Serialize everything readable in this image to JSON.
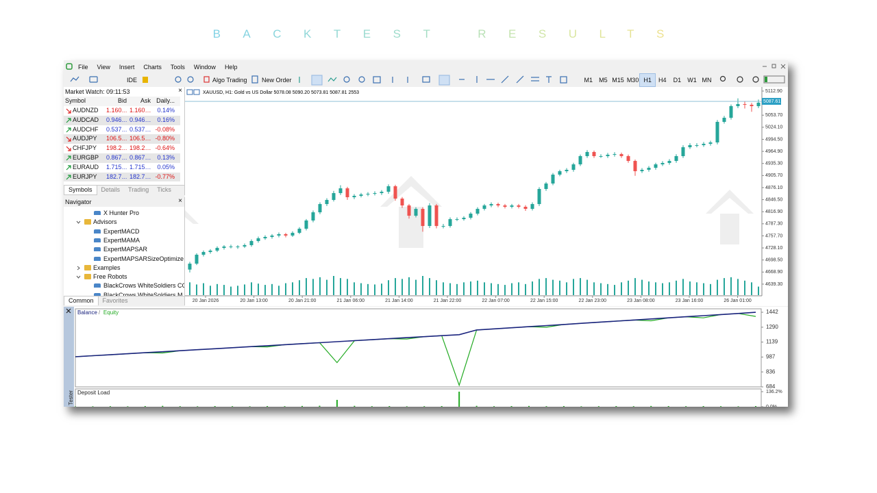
{
  "title": "BACKTEST RESULTS",
  "menu": [
    "File",
    "View",
    "Insert",
    "Charts",
    "Tools",
    "Window",
    "Help"
  ],
  "toolbar": {
    "ide": "IDE",
    "algo_trading": "Algo Trading",
    "new_order": "New Order",
    "timeframes": [
      "M1",
      "M5",
      "M15",
      "M30",
      "H1",
      "H4",
      "D1",
      "W1",
      "MN"
    ],
    "active_timeframe": "H1"
  },
  "market_watch": {
    "title": "Market Watch: 09:11:53",
    "columns": [
      "Symbol",
      "Bid",
      "Ask",
      "Daily..."
    ],
    "rows": [
      {
        "symbol": "AUDNZD",
        "bid": "1.160…",
        "ask": "1.160…",
        "daily": "0.14%",
        "trend": "down"
      },
      {
        "symbol": "AUDCAD",
        "bid": "0.946…",
        "ask": "0.946…",
        "daily": "0.16%",
        "trend": "up"
      },
      {
        "symbol": "AUDCHF",
        "bid": "0.537…",
        "ask": "0.537…",
        "daily": "-0.08%",
        "trend": "up"
      },
      {
        "symbol": "AUDJPY",
        "bid": "106.5…",
        "ask": "106.5…",
        "daily": "-0.80%",
        "trend": "down"
      },
      {
        "symbol": "CHFJPY",
        "bid": "198.2…",
        "ask": "198.2…",
        "daily": "-0.64%",
        "trend": "down"
      },
      {
        "symbol": "EURGBP",
        "bid": "0.867…",
        "ask": "0.867…",
        "daily": "0.13%",
        "trend": "up"
      },
      {
        "symbol": "EURAUD",
        "bid": "1.715…",
        "ask": "1.715…",
        "daily": "0.05%",
        "trend": "up"
      },
      {
        "symbol": "EURJPY",
        "bid": "182.7…",
        "ask": "182.7…",
        "daily": "-0.77%",
        "trend": "up"
      }
    ],
    "tabs": [
      "Symbols",
      "Details",
      "Trading",
      "Ticks"
    ]
  },
  "navigator": {
    "title": "Navigator",
    "items": [
      {
        "label": "X Hunter Pro",
        "level": 2,
        "kind": "ea"
      },
      {
        "label": "Advisors",
        "level": 1,
        "kind": "folder",
        "expanded": true
      },
      {
        "label": "ExpertMACD",
        "level": 2,
        "kind": "ea"
      },
      {
        "label": "ExpertMAMA",
        "level": 2,
        "kind": "ea"
      },
      {
        "label": "ExpertMAPSAR",
        "level": 2,
        "kind": "ea"
      },
      {
        "label": "ExpertMAPSARSizeOptimize",
        "level": 2,
        "kind": "ea"
      },
      {
        "label": "Examples",
        "level": 1,
        "kind": "folder",
        "expanded": false
      },
      {
        "label": "Free Robots",
        "level": 1,
        "kind": "folder",
        "expanded": true
      },
      {
        "label": "BlackCrows WhiteSoldiers CC",
        "level": 2,
        "kind": "ea"
      },
      {
        "label": "BlackCrows WhiteSoldiers M",
        "level": 2,
        "kind": "ea"
      }
    ],
    "tabs": [
      "Common",
      "Favorites"
    ]
  },
  "chart": {
    "type": "candlestick",
    "header": "XAUUSD, H1:  Gold vs US Dollar  5078.08 5090.20 5073.81 5087.81  2553",
    "ylim": [
      4614,
      5119.6
    ],
    "yticks": [
      {
        "value": 5112.9,
        "label": "5112.90"
      },
      {
        "value": 5053.7,
        "label": "5053.70"
      },
      {
        "value": 5024.1,
        "label": "5024.10"
      },
      {
        "value": 4994.5,
        "label": "4994.50"
      },
      {
        "value": 4964.9,
        "label": "4964.90"
      },
      {
        "value": 4935.3,
        "label": "4935.30"
      },
      {
        "value": 4905.7,
        "label": "4905.70"
      },
      {
        "value": 4876.1,
        "label": "4876.10"
      },
      {
        "value": 4846.5,
        "label": "4846.50"
      },
      {
        "value": 4816.9,
        "label": "4816.90"
      },
      {
        "value": 4787.3,
        "label": "4787.30"
      },
      {
        "value": 4757.7,
        "label": "4757.70"
      },
      {
        "value": 4728.1,
        "label": "4728.10"
      },
      {
        "value": 4698.5,
        "label": "4698.50"
      },
      {
        "value": 4668.9,
        "label": "4668.90"
      },
      {
        "value": 4639.3,
        "label": "4639.30"
      }
    ],
    "last_price": {
      "value": 5087.61,
      "label": "5087.61"
    },
    "x_labels": [
      "20 Jan 2026",
      "20 Jan 13:00",
      "20 Jan 21:00",
      "21 Jan 06:00",
      "21 Jan 14:00",
      "21 Jan 22:00",
      "22 Jan 07:00",
      "22 Jan 15:00",
      "22 Jan 23:00",
      "23 Jan 08:00",
      "23 Jan 16:00",
      "26 Jan 01:00"
    ],
    "up_color": "#26a69a",
    "down_color": "#ef5350",
    "candles": [
      [
        4675.0,
        4694.0,
        4668.0,
        4689.5
      ],
      [
        4689.5,
        4715.0,
        4686.0,
        4711.4
      ],
      [
        4711.4,
        4722.0,
        4707.0,
        4718.1
      ],
      [
        4718.1,
        4725.0,
        4714.0,
        4721.5
      ],
      [
        4721.5,
        4732.0,
        4718.0,
        4728.2
      ],
      [
        4728.2,
        4735.0,
        4724.0,
        4731.5
      ],
      [
        4731.5,
        4736.0,
        4727.0,
        4731.5
      ],
      [
        4731.5,
        4735.0,
        4726.0,
        4731.5
      ],
      [
        4731.5,
        4739.0,
        4728.0,
        4734.9
      ],
      [
        4734.9,
        4749.0,
        4731.0,
        4745.0
      ],
      [
        4745.0,
        4756.0,
        4741.0,
        4751.7
      ],
      [
        4751.7,
        4759.0,
        4748.0,
        4755.1
      ],
      [
        4755.1,
        4762.0,
        4751.0,
        4758.4
      ],
      [
        4758.4,
        4766.0,
        4754.0,
        4761.8
      ],
      [
        4761.8,
        4765.0,
        4754.0,
        4758.4
      ],
      [
        4758.4,
        4769.0,
        4755.0,
        4765.1
      ],
      [
        4765.1,
        4779.0,
        4762.0,
        4775.2
      ],
      [
        4775.2,
        4799.0,
        4771.0,
        4795.4
      ],
      [
        4795.4,
        4820.0,
        4791.0,
        4815.5
      ],
      [
        4815.5,
        4840.0,
        4811.0,
        4835.7
      ],
      [
        4835.7,
        4850.0,
        4831.0,
        4845.8
      ],
      [
        4845.8,
        4868.0,
        4842.0,
        4862.6
      ],
      [
        4862.6,
        4882.0,
        4858.0,
        4874.3
      ],
      [
        4874.3,
        4878.0,
        4846.0,
        4852.5
      ],
      [
        4852.5,
        4860.0,
        4848.0,
        4855.9
      ],
      [
        4855.9,
        4863.0,
        4852.0,
        4859.2
      ],
      [
        4859.2,
        4865.0,
        4855.0,
        4860.9
      ],
      [
        4860.9,
        4867.0,
        4857.0,
        4862.6
      ],
      [
        4862.6,
        4870.0,
        4858.0,
        4865.9
      ],
      [
        4865.9,
        4884.0,
        4861.0,
        4879.4
      ],
      [
        4879.4,
        4883.0,
        4844.0,
        4849.1
      ],
      [
        4849.1,
        4853.0,
        4826.0,
        4832.3
      ],
      [
        4832.3,
        4836.0,
        4800.0,
        4807.1
      ],
      [
        4807.1,
        4828.0,
        4803.0,
        4823.9
      ],
      [
        4823.9,
        4828.0,
        4768.0,
        4781.9
      ],
      [
        4781.9,
        4838.0,
        4777.0,
        4832.3
      ],
      [
        4832.3,
        4836.0,
        4776.0,
        4781.9
      ],
      [
        4781.9,
        4787.0,
        4776.0,
        4781.9
      ],
      [
        4781.9,
        4803.0,
        4778.0,
        4798.7
      ],
      [
        4798.7,
        4803.0,
        4794.0,
        4798.7
      ],
      [
        4798.7,
        4806.0,
        4795.0,
        4802.1
      ],
      [
        4802.1,
        4816.0,
        4798.0,
        4812.2
      ],
      [
        4812.2,
        4828.0,
        4808.0,
        4823.9
      ],
      [
        4823.9,
        4836.0,
        4820.0,
        4832.3
      ],
      [
        4832.3,
        4840.0,
        4828.0,
        4835.7
      ],
      [
        4835.7,
        4839.0,
        4828.0,
        4832.3
      ],
      [
        4832.3,
        4836.0,
        4825.0,
        4829.0
      ],
      [
        4829.0,
        4836.0,
        4825.0,
        4832.3
      ],
      [
        4832.3,
        4836.0,
        4825.0,
        4829.0
      ],
      [
        4829.0,
        4833.0,
        4819.0,
        4823.9
      ],
      [
        4823.9,
        4840.0,
        4820.0,
        4835.7
      ],
      [
        4835.7,
        4877.0,
        4831.0,
        4872.7
      ],
      [
        4872.7,
        4890.0,
        4868.0,
        4886.1
      ],
      [
        4886.1,
        4912.0,
        4882.0,
        4907.9
      ],
      [
        4907.9,
        4920.0,
        4904.0,
        4916.3
      ],
      [
        4916.3,
        4924.0,
        4912.0,
        4919.7
      ],
      [
        4919.7,
        4937.0,
        4915.0,
        4933.1
      ],
      [
        4933.1,
        4957.0,
        4929.0,
        4953.3
      ],
      [
        4953.3,
        4968.0,
        4949.0,
        4963.4
      ],
      [
        4963.4,
        4967.0,
        4949.0,
        4953.3
      ],
      [
        4953.3,
        4958.0,
        4949.0,
        4953.3
      ],
      [
        4953.3,
        4961.0,
        4949.0,
        4956.7
      ],
      [
        4956.7,
        4963.0,
        4952.0,
        4958.3
      ],
      [
        4958.3,
        4962.0,
        4949.0,
        4953.3
      ],
      [
        4953.3,
        4957.0,
        4937.0,
        4941.5
      ],
      [
        4941.5,
        4945.0,
        4905.0,
        4916.3
      ],
      [
        4916.3,
        4924.0,
        4912.0,
        4919.7
      ],
      [
        4919.7,
        4929.0,
        4915.0,
        4924.7
      ],
      [
        4924.7,
        4937.0,
        4920.0,
        4933.1
      ],
      [
        4933.1,
        4941.0,
        4929.0,
        4936.5
      ],
      [
        4936.5,
        4946.0,
        4932.0,
        4941.5
      ],
      [
        4941.5,
        4958.0,
        4937.0,
        4953.3
      ],
      [
        4953.3,
        4980.0,
        4949.0,
        4975.1
      ],
      [
        4975.1,
        4985.0,
        4971.0,
        4980.2
      ],
      [
        4980.2,
        4985.0,
        4975.0,
        4980.2
      ],
      [
        4980.2,
        4988.0,
        4976.0,
        4983.5
      ],
      [
        4983.5,
        4991.0,
        4979.0,
        4986.9
      ],
      [
        4986.9,
        5042.0,
        4982.0,
        5037.3
      ],
      [
        5037.3,
        5052.0,
        5033.0,
        5047.4
      ],
      [
        5047.4,
        5080.0,
        5043.0,
        5075.9
      ],
      [
        5075.9,
        5095.0,
        5071.0,
        5081.0
      ],
      [
        5081.0,
        5088.0,
        5070.0,
        5079.3
      ],
      [
        5079.3,
        5084.0,
        5062.0,
        5075.9
      ],
      [
        5075.9,
        5092.0,
        5071.0,
        5084.3
      ]
    ],
    "volumes": [
      30,
      25,
      28,
      22,
      26,
      24,
      20,
      22,
      25,
      30,
      27,
      24,
      26,
      22,
      28,
      30,
      35,
      40,
      38,
      42,
      36,
      45,
      40,
      38,
      30,
      28,
      26,
      25,
      27,
      35,
      40,
      38,
      42,
      36,
      45,
      40,
      35,
      30,
      28,
      26,
      30,
      32,
      34,
      30,
      28,
      26,
      24,
      28,
      30,
      26,
      32,
      38,
      40,
      36,
      34,
      30,
      38,
      40,
      36,
      30,
      28,
      26,
      24,
      30,
      34,
      40,
      36,
      32,
      30,
      28,
      30,
      34,
      38,
      32,
      30,
      28,
      26,
      36,
      40,
      42,
      38,
      34,
      30,
      20
    ]
  },
  "tester": {
    "side_label": "Strategy Tester",
    "balance_chart": {
      "ylim": [
        684,
        1477
      ],
      "yticks": [
        1442,
        1290,
        1139,
        987,
        836,
        684
      ],
      "series": [
        {
          "name": "Balance",
          "color": "#1a237e",
          "values": [
            990.0,
            1000.2,
            1010.4,
            1020.6,
            1030.8,
            1041.0,
            1051.2,
            1061.4,
            1071.6,
            1081.8,
            1092.0,
            1102.2,
            1112.4,
            1122.6,
            1132.8,
            1143.0,
            1153.2,
            1163.4,
            1173.6,
            1183.8,
            1194.0,
            1204.2,
            1214.4,
            1262.0,
            1273.2,
            1284.4,
            1295.6,
            1306.8,
            1318.0,
            1329.2,
            1340.4,
            1351.6,
            1362.8,
            1374.0,
            1385.2,
            1396.4,
            1407.6,
            1418.8,
            1430.0,
            1441.2
          ]
        },
        {
          "name": "Equity",
          "color": "#22aa22",
          "values": [
            990.0,
            1000.2,
            1010.4,
            1020.6,
            1030.8,
            1028.0,
            1051.2,
            1061.4,
            1071.6,
            1081.8,
            1092.0,
            1090.0,
            1112.4,
            1122.6,
            1132.8,
            930.0,
            1153.2,
            1163.4,
            1173.6,
            1170.0,
            1194.0,
            1204.2,
            700.0,
            1262.0,
            1273.2,
            1284.4,
            1295.6,
            1290.0,
            1318.0,
            1329.2,
            1340.4,
            1351.6,
            1362.8,
            1355.0,
            1385.2,
            1396.4,
            1385.0,
            1418.8,
            1430.0,
            1400.0
          ]
        }
      ]
    },
    "deposit_load": {
      "title": "Deposit Load",
      "color": "#22aa22",
      "ylim": [
        0,
        136.2
      ],
      "yticks": [
        {
          "value": 136.2,
          "label": "136.2%"
        },
        {
          "value": 0,
          "label": "0.0%"
        }
      ],
      "values": [
        3,
        4,
        5,
        4,
        6,
        8,
        5,
        4,
        6,
        5,
        4,
        6,
        5,
        7,
        9,
        62,
        8,
        5,
        6,
        4,
        5,
        6,
        136.2,
        8,
        5,
        6,
        7,
        5,
        6,
        4,
        5,
        6,
        5,
        7,
        6,
        5,
        6,
        5,
        4,
        6
      ]
    }
  }
}
